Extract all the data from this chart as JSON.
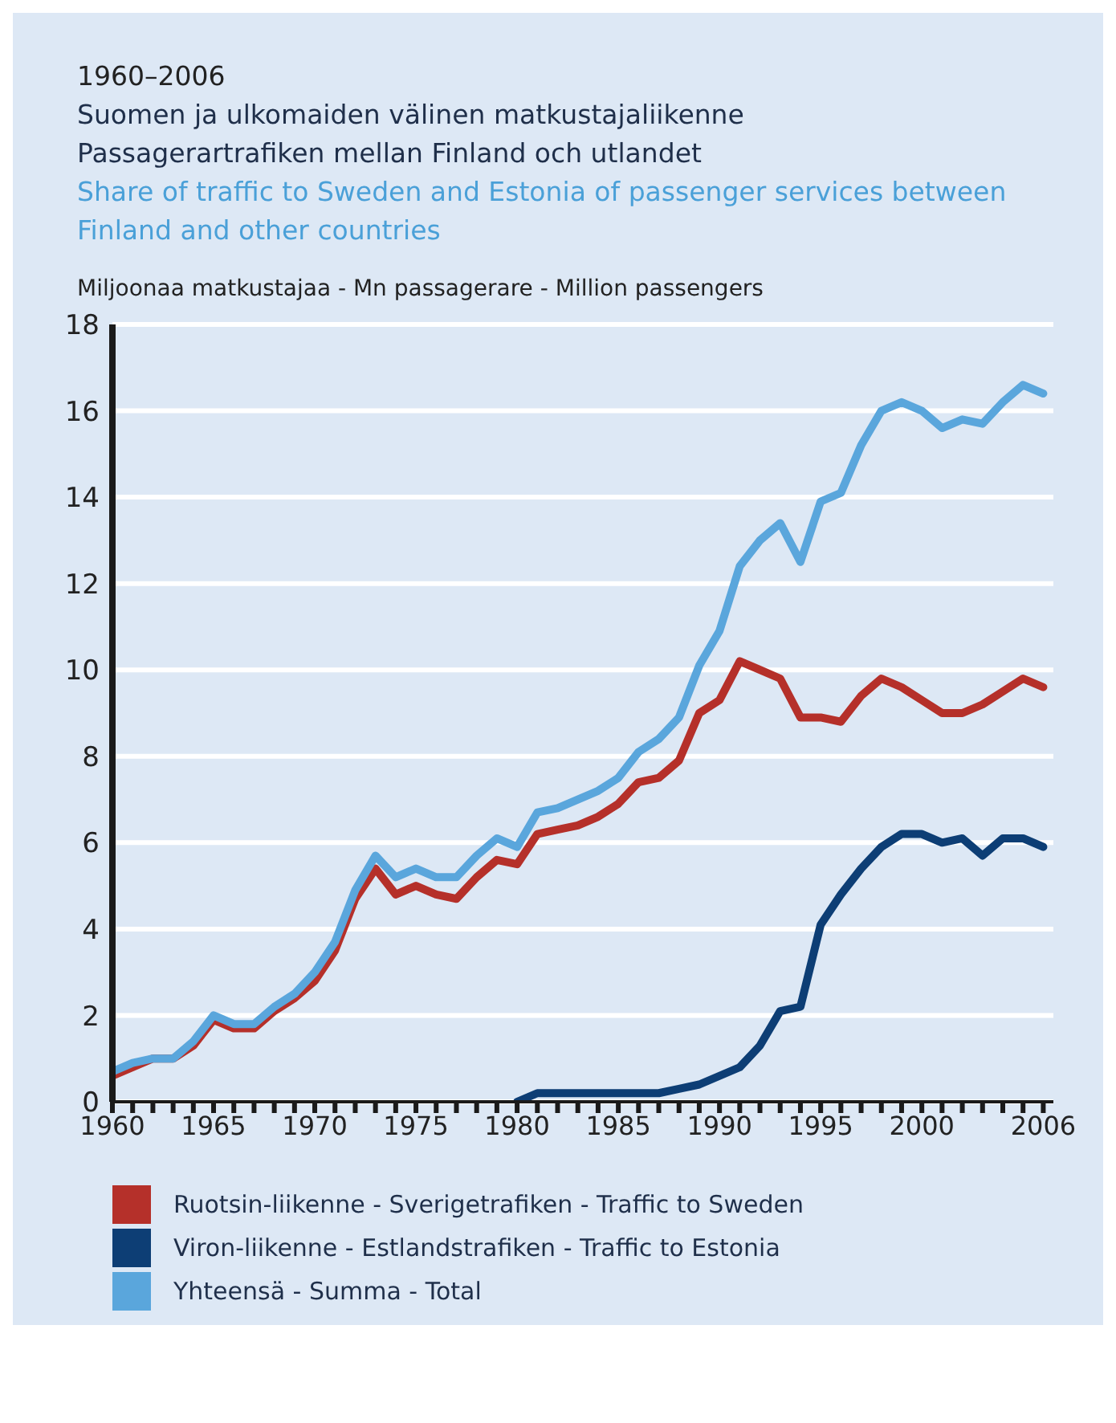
{
  "chart_data": {
    "type": "line",
    "title": "1960–2006",
    "subtitle": "Suomen ja ulkomaiden välinen matkustajaliikenne\nPassagerartrafiken mellan Finland och utlandet\nShare of traffic to Sweden and Estonia of passenger services between Finland and other countries",
    "ylabel": "Miljoonaa matkustajaa - Mn passagerare - Million passengers",
    "x": [
      1960,
      1961,
      1962,
      1963,
      1964,
      1965,
      1966,
      1967,
      1968,
      1969,
      1970,
      1971,
      1972,
      1973,
      1974,
      1975,
      1976,
      1977,
      1978,
      1979,
      1980,
      1981,
      1982,
      1983,
      1984,
      1985,
      1986,
      1987,
      1988,
      1989,
      1990,
      1991,
      1992,
      1993,
      1994,
      1995,
      1996,
      1997,
      1998,
      1999,
      2000,
      2001,
      2002,
      2003,
      2004,
      2005,
      2006
    ],
    "series": [
      {
        "name": "Ruotsin-liikenne - Sverigetrafiken - Traffic to Sweden",
        "color": "#b5302a",
        "values": [
          0.6,
          0.8,
          1.0,
          1.0,
          1.3,
          1.9,
          1.7,
          1.7,
          2.1,
          2.4,
          2.8,
          3.5,
          4.7,
          5.4,
          4.8,
          5.0,
          4.8,
          4.7,
          5.2,
          5.6,
          5.5,
          6.2,
          6.3,
          6.4,
          6.6,
          6.9,
          7.4,
          7.5,
          7.9,
          9.0,
          9.3,
          10.2,
          10.0,
          9.8,
          8.9,
          8.9,
          8.8,
          9.4,
          9.8,
          9.6,
          9.3,
          9.0,
          9.0,
          9.2,
          9.5,
          9.8,
          9.6
        ]
      },
      {
        "name": "Viron-liikenne - Estlandstrafiken - Traffic to Estonia",
        "color": "#0d3e75",
        "values": [
          null,
          null,
          null,
          null,
          null,
          null,
          null,
          null,
          null,
          null,
          null,
          null,
          null,
          null,
          null,
          null,
          null,
          null,
          null,
          null,
          0.0,
          0.2,
          0.2,
          0.2,
          0.2,
          0.2,
          0.2,
          0.2,
          0.3,
          0.4,
          0.6,
          0.8,
          1.3,
          2.1,
          2.2,
          4.1,
          4.8,
          5.4,
          5.9,
          6.2,
          6.2,
          6.0,
          6.1,
          5.7,
          6.1,
          6.1,
          5.9
        ]
      },
      {
        "name": "Yhteensä - Summa - Total",
        "color": "#5aa6dc",
        "values": [
          0.7,
          0.9,
          1.0,
          1.0,
          1.4,
          2.0,
          1.8,
          1.8,
          2.2,
          2.5,
          3.0,
          3.7,
          4.9,
          5.7,
          5.2,
          5.4,
          5.2,
          5.2,
          5.7,
          6.1,
          5.9,
          6.7,
          6.8,
          7.0,
          7.2,
          7.5,
          8.1,
          8.4,
          8.9,
          10.1,
          10.9,
          12.4,
          13.0,
          13.4,
          12.5,
          13.9,
          14.1,
          15.2,
          16.0,
          16.2,
          16.0,
          15.6,
          15.8,
          15.7,
          16.2,
          16.6,
          16.4
        ]
      }
    ],
    "xlim": [
      1960,
      2006.5
    ],
    "xticks": [
      1960,
      {
        "value": 1961,
        "label": null
      },
      {
        "value": 1962,
        "label": null
      },
      {
        "value": 1963,
        "label": null
      },
      {
        "value": 1964,
        "label": null
      },
      1965,
      {
        "value": 1966,
        "label": null
      },
      {
        "value": 1967,
        "label": null
      },
      {
        "value": 1968,
        "label": null
      },
      {
        "value": 1969,
        "label": null
      },
      1970,
      {
        "value": 1971,
        "label": null
      },
      {
        "value": 1972,
        "label": null
      },
      {
        "value": 1973,
        "label": null
      },
      {
        "value": 1974,
        "label": null
      },
      1975,
      {
        "value": 1976,
        "label": null
      },
      {
        "value": 1977,
        "label": null
      },
      {
        "value": 1978,
        "label": null
      },
      {
        "value": 1979,
        "label": null
      },
      1980,
      {
        "value": 1981,
        "label": null
      },
      {
        "value": 1982,
        "label": null
      },
      {
        "value": 1983,
        "label": null
      },
      {
        "value": 1984,
        "label": null
      },
      1985,
      {
        "value": 1986,
        "label": null
      },
      {
        "value": 1987,
        "label": null
      },
      {
        "value": 1988,
        "label": null
      },
      {
        "value": 1989,
        "label": null
      },
      1990,
      {
        "value": 1991,
        "label": null
      },
      {
        "value": 1992,
        "label": null
      },
      {
        "value": 1993,
        "label": null
      },
      {
        "value": 1994,
        "label": null
      },
      1995,
      {
        "value": 1996,
        "label": null
      },
      {
        "value": 1997,
        "label": null
      },
      {
        "value": 1998,
        "label": null
      },
      {
        "value": 1999,
        "label": null
      },
      2000,
      {
        "value": 2001,
        "label": null
      },
      {
        "value": 2002,
        "label": null
      },
      {
        "value": 2003,
        "label": null
      },
      {
        "value": 2004,
        "label": null
      },
      {
        "value": 2005,
        "label": null
      },
      2006
    ],
    "ylim": [
      0,
      18
    ],
    "yticks": [
      0,
      2,
      4,
      6,
      8,
      10,
      12,
      14,
      16,
      18
    ],
    "grid": "y",
    "legend": "bottom",
    "marker": "none",
    "line_style": "solid"
  }
}
